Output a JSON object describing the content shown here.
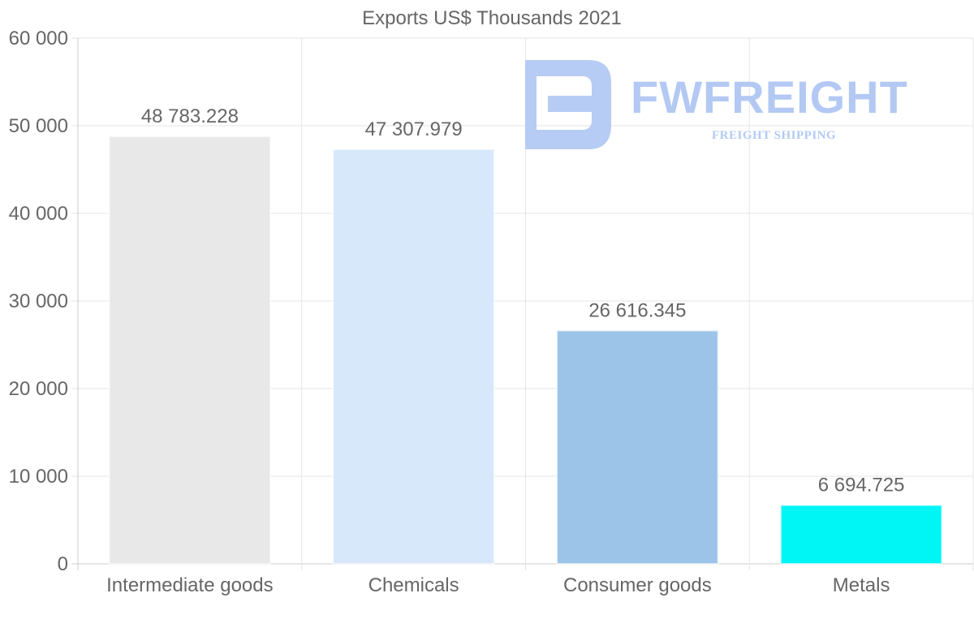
{
  "chart_data": {
    "type": "bar",
    "title": "Exports US$ Thousands 2021",
    "xlabel": "",
    "ylabel": "",
    "categories": [
      "Intermediate goods",
      "Chemicals",
      "Consumer goods",
      "Metals"
    ],
    "values": [
      48783.228,
      47307.979,
      26616.345,
      6694.725
    ],
    "value_labels": [
      "48 783.228",
      "47 307.979",
      "26 616.345",
      "6 694.725"
    ],
    "bar_colors": [
      "#e8e8e8",
      "#d7e8fa",
      "#9bc4e8",
      "#00f5f5"
    ],
    "ylim": [
      0,
      60000
    ],
    "yticks": [
      0,
      10000,
      20000,
      30000,
      40000,
      50000,
      60000
    ],
    "ytick_labels": [
      "0",
      "10 000",
      "20 000",
      "30 000",
      "40 000",
      "50 000",
      "60 000"
    ],
    "grid": true,
    "legend": "none"
  },
  "watermark": {
    "brand": "FWFREIGHT",
    "tagline": "FREIGHT SHIPPING",
    "color": "#b3c9f3"
  }
}
